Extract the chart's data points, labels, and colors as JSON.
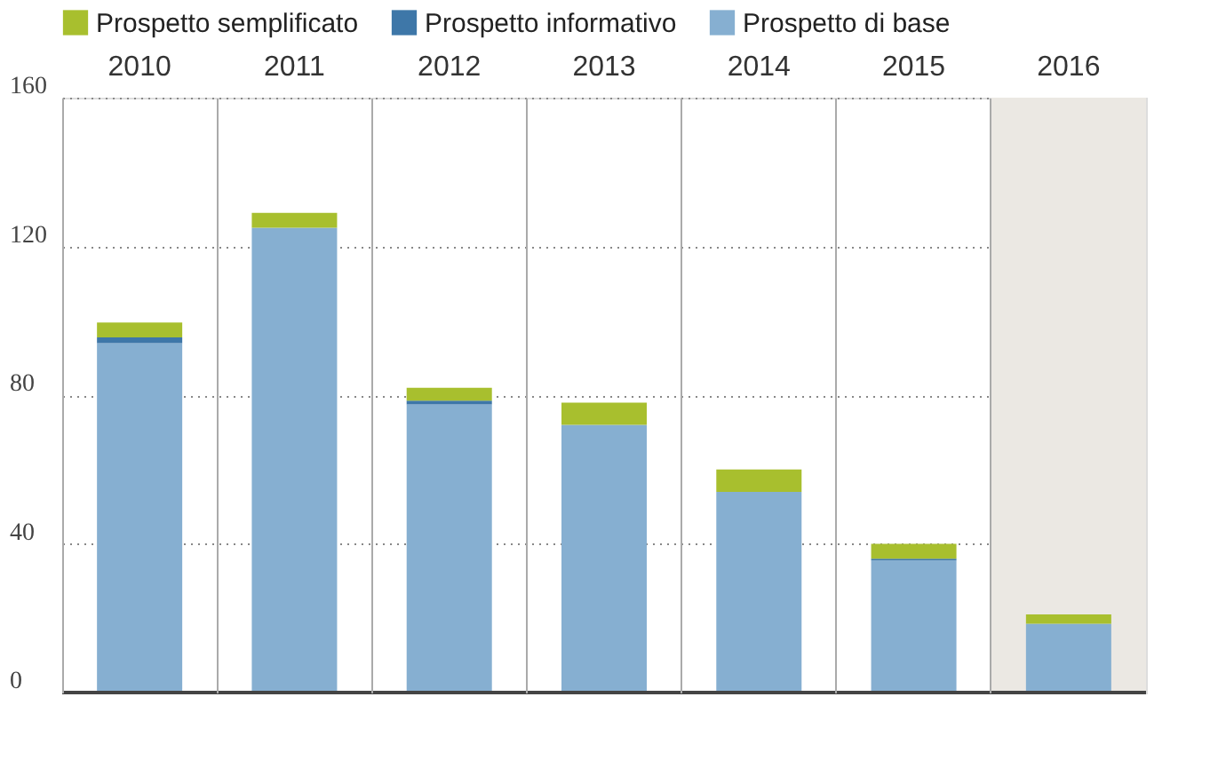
{
  "chart_data": {
    "type": "bar",
    "stacked": true,
    "categories": [
      "2010",
      "2011",
      "2012",
      "2013",
      "2014",
      "2015",
      "2016"
    ],
    "series": [
      {
        "name": "Prospetto di base",
        "color": "#86afd1",
        "values": [
          94,
          125,
          77.5,
          72,
          54,
          35.5,
          18.5
        ]
      },
      {
        "name": "Prospetto informativo",
        "color": "#3e77a8",
        "values": [
          1.5,
          0,
          1,
          0,
          0,
          0.5,
          0
        ]
      },
      {
        "name": "Prospetto semplificato",
        "color": "#a8bf2e",
        "values": [
          4,
          4,
          3.5,
          6,
          6,
          4,
          2.5
        ]
      }
    ],
    "ylim": [
      0,
      160
    ],
    "yticks": [
      0,
      40,
      80,
      120,
      160
    ],
    "grid": true,
    "legend": "top left",
    "bands": [
      {
        "axis": "x",
        "from": "2016",
        "to": "2016",
        "color": "#ebe8e3"
      }
    ]
  }
}
